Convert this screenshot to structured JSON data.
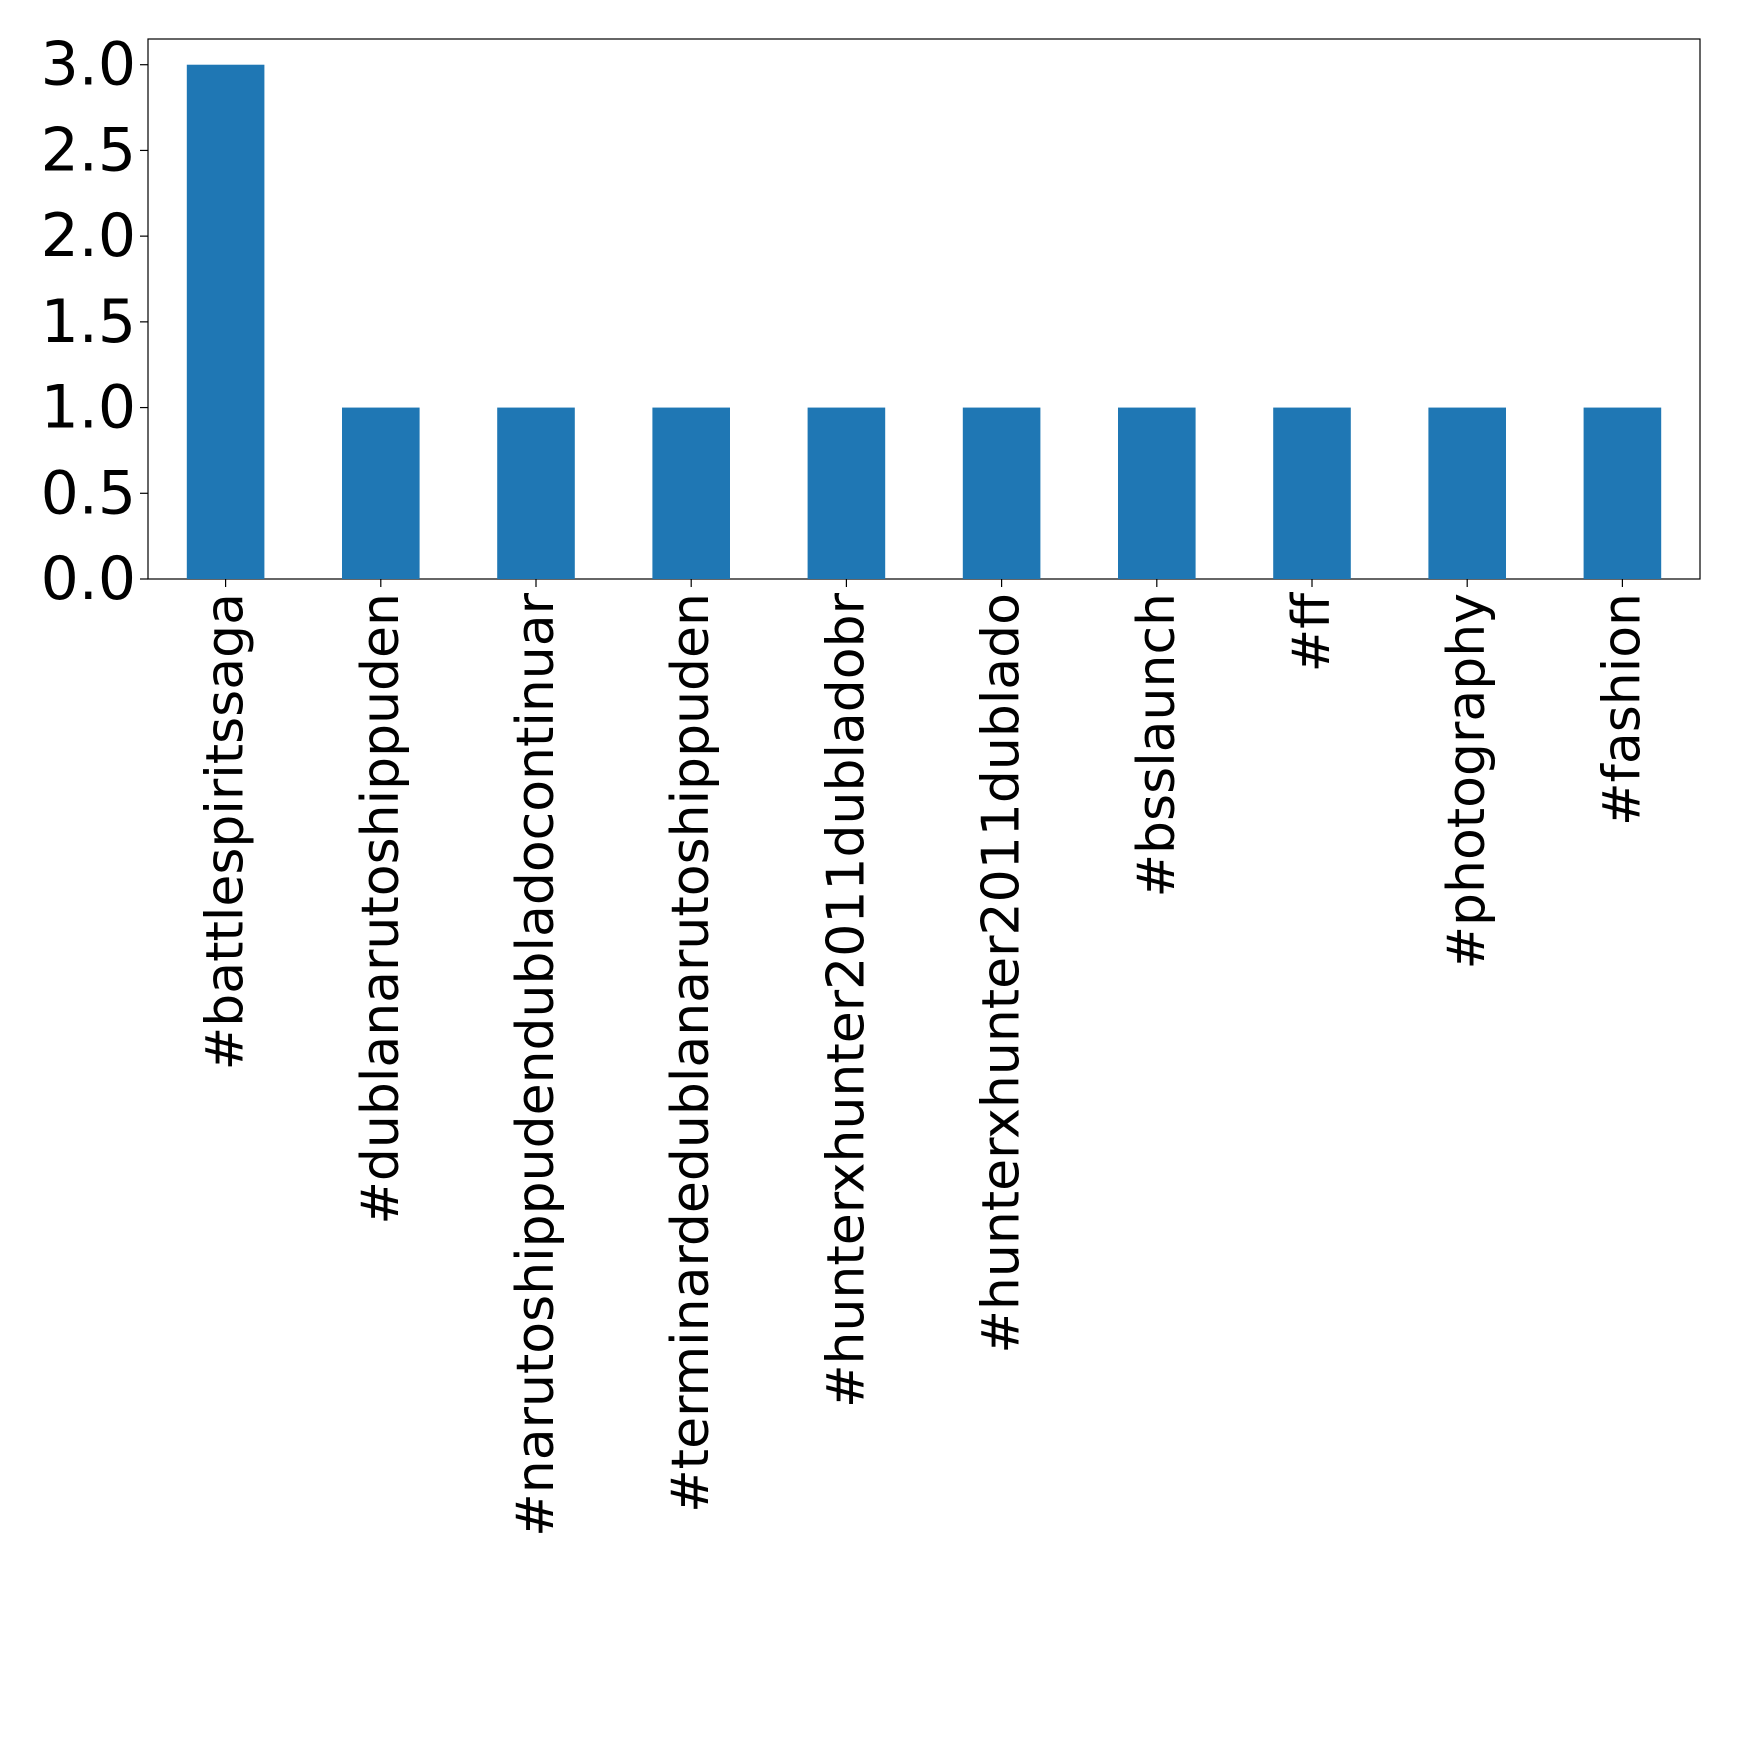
{
  "chart_data": {
    "type": "bar",
    "categories": [
      "#battlespiritssaga",
      "#dublanarutoshippuden",
      "#narutoshippudendubladocontinuar",
      "#terminardedublanarutoshippuden",
      "#hunterxhunter2011dubladobr",
      "#hunterxhunter2011dublado",
      "#bsslaunch",
      "#ff",
      "#photography",
      "#fashion"
    ],
    "values": [
      3,
      1,
      1,
      1,
      1,
      1,
      1,
      1,
      1,
      1
    ],
    "ylim": [
      0,
      3.15
    ],
    "yticks": [
      "0.0",
      "0.5",
      "1.0",
      "1.5",
      "2.0",
      "2.5",
      "3.0"
    ],
    "ytick_values": [
      0,
      0.5,
      1.0,
      1.5,
      2.0,
      2.5,
      3.0
    ],
    "bar_color": "#1f77b4",
    "grid": false,
    "legend": "none"
  }
}
